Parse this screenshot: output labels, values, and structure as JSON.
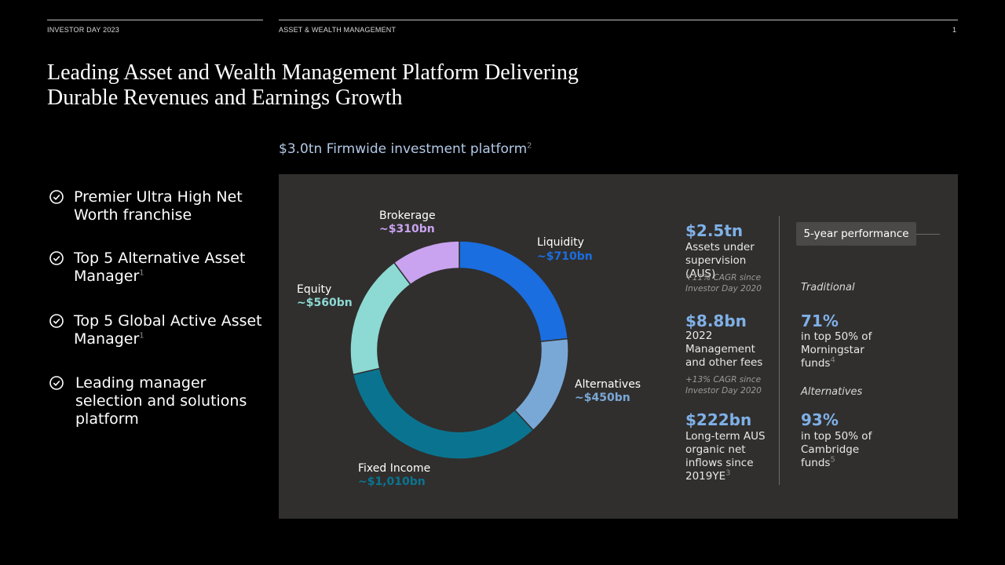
{
  "header": {
    "left": "INVESTOR DAY 2023",
    "section": "ASSET & WEALTH MANAGEMENT",
    "page": "1"
  },
  "title_line1": "Leading Asset and Wealth Management Platform Delivering",
  "title_line2": "Durable Revenues and Earnings Growth",
  "subtitle": {
    "text": "$3.0tn Firmwide investment platform",
    "footnote": "2"
  },
  "bullets": [
    {
      "text": "Premier Ultra High Net Worth franchise",
      "footnote": ""
    },
    {
      "text": "Top 5 Alternative Asset Manager",
      "footnote": "1"
    },
    {
      "text": "Top 5 Global Active Asset Manager",
      "footnote": "1"
    },
    {
      "text": "Leading manager selection and solutions platform",
      "footnote": ""
    }
  ],
  "chart_data": {
    "type": "pie",
    "title": "$3.0tn Firmwide investment platform",
    "series": [
      {
        "name": "Liquidity",
        "value_label": "~$710bn",
        "value": 710,
        "color": "#1a6ee0"
      },
      {
        "name": "Alternatives",
        "value_label": "~$450bn",
        "value": 450,
        "color": "#7aa8d6"
      },
      {
        "name": "Fixed Income",
        "value_label": "~$1,010bn",
        "value": 1010,
        "color": "#0a7490"
      },
      {
        "name": "Equity",
        "value_label": "~$560bn",
        "value": 560,
        "color": "#8dd9d3"
      },
      {
        "name": "Brokerage",
        "value_label": "~$310bn",
        "value": 310,
        "color": "#c9a3ef"
      }
    ]
  },
  "stats": {
    "aus": {
      "value": "$2.5tn",
      "label": "Assets under supervision (AUS)",
      "note": "+11% CAGR since Investor Day 2020"
    },
    "fees": {
      "value": "$8.8bn",
      "label": "2022 Management and other fees",
      "note": "+13% CAGR since Investor Day 2020"
    },
    "inflows": {
      "value": "$222bn",
      "label": "Long-term AUS organic net inflows since 2019YE",
      "footnote": "3"
    }
  },
  "performance": {
    "box_label": "5-year performance",
    "traditional": {
      "category": "Traditional",
      "value": "71%",
      "label": "in top 50% of Morningstar funds",
      "footnote": "4"
    },
    "alternatives": {
      "category": "Alternatives",
      "value": "93%",
      "label": "in top 50% of Cambridge funds",
      "footnote": "5"
    }
  }
}
